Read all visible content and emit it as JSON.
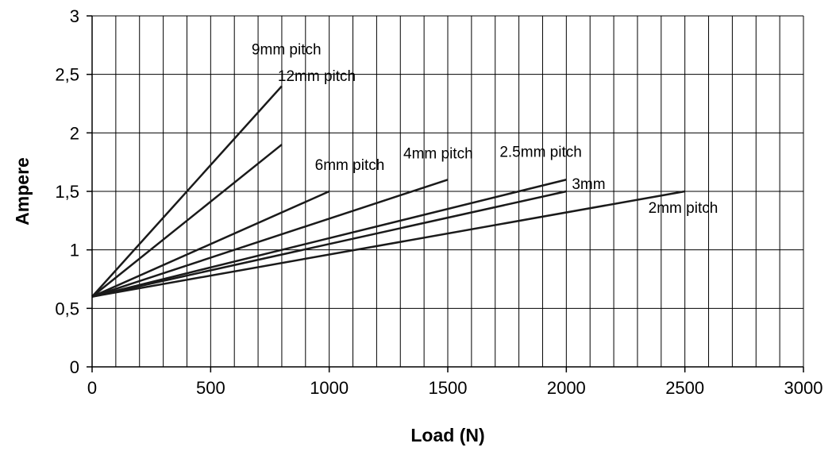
{
  "chart_data": {
    "type": "line",
    "title": "",
    "xlabel": "Load (N)",
    "ylabel": "Ampere",
    "xlim": [
      0,
      3000
    ],
    "ylim": [
      0,
      3
    ],
    "x_ticks": [
      0,
      500,
      1000,
      1500,
      2000,
      2500,
      3000
    ],
    "x_tick_labels": [
      "0",
      "500",
      "1000",
      "1500",
      "2000",
      "2500",
      "3000"
    ],
    "y_ticks": [
      0,
      0.5,
      1,
      1.5,
      2,
      2.5,
      3
    ],
    "y_tick_labels": [
      "0",
      "0,5",
      "1",
      "1,5",
      "2",
      "2,5",
      "3"
    ],
    "x_gridlines": [
      0,
      100,
      200,
      300,
      400,
      500,
      600,
      700,
      800,
      900,
      1000,
      1100,
      1200,
      1300,
      1400,
      1500,
      1600,
      1700,
      1800,
      1900,
      2000,
      2100,
      2200,
      2300,
      2400,
      2500,
      2600,
      2700,
      2800,
      2900,
      3000
    ],
    "y_gridlines": [
      0.5,
      1,
      1.5,
      2,
      2.5,
      3
    ],
    "grid": true,
    "legend": "none",
    "series": [
      {
        "name": "9mm pitch",
        "x": [
          0,
          800
        ],
        "y": [
          0.6,
          2.4
        ]
      },
      {
        "name": "12mm pitch",
        "x": [
          0,
          800
        ],
        "y": [
          0.6,
          1.9
        ]
      },
      {
        "name": "6mm pitch",
        "x": [
          0,
          1000
        ],
        "y": [
          0.6,
          1.5
        ]
      },
      {
        "name": "4mm pitch",
        "x": [
          0,
          1500
        ],
        "y": [
          0.6,
          1.6
        ]
      },
      {
        "name": "2.5mm pitch",
        "x": [
          0,
          2000
        ],
        "y": [
          0.6,
          1.6
        ]
      },
      {
        "name": "3mm",
        "x": [
          0,
          2000
        ],
        "y": [
          0.6,
          1.5
        ]
      },
      {
        "name": "2mm pitch",
        "x": [
          0,
          2500
        ],
        "y": [
          0.6,
          1.5
        ]
      }
    ],
    "line_color": "#1a1a1a",
    "grid_color": "#000000"
  }
}
